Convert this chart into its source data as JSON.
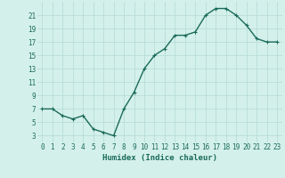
{
  "x": [
    0,
    1,
    2,
    3,
    4,
    5,
    6,
    7,
    8,
    9,
    10,
    11,
    12,
    13,
    14,
    15,
    16,
    17,
    18,
    19,
    20,
    21,
    22,
    23
  ],
  "y": [
    7,
    7,
    6,
    5.5,
    6,
    4,
    3.5,
    3,
    7,
    9.5,
    13,
    15,
    16,
    18,
    18,
    18.5,
    21,
    22,
    22,
    21,
    19.5,
    17.5,
    17,
    17
  ],
  "xlabel": "Humidex (Indice chaleur)",
  "xlim": [
    -0.5,
    23.5
  ],
  "ylim": [
    2,
    23
  ],
  "yticks": [
    3,
    5,
    7,
    9,
    11,
    13,
    15,
    17,
    19,
    21
  ],
  "line_color": "#1a6b5a",
  "bg_color": "#d4f0eb",
  "grid_color": "#b8ddd7",
  "marker_size": 2.5,
  "line_width": 1.0,
  "tick_fontsize": 5.5,
  "xlabel_fontsize": 6.5
}
